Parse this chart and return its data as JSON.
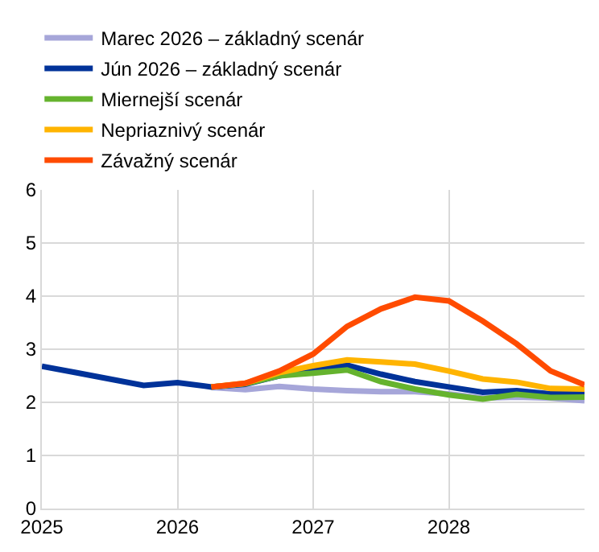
{
  "chart_data": {
    "type": "line",
    "x": [
      2025,
      2025.25,
      2025.5,
      2025.75,
      2026,
      2026.25,
      2026.5,
      2026.75,
      2027,
      2027.25,
      2027.5,
      2027.75,
      2028,
      2028.25,
      2028.5,
      2028.75,
      2029
    ],
    "series": [
      {
        "name": "Marec 2026 – základný scenár",
        "color": "#a6a6d9",
        "values": [
          null,
          null,
          null,
          null,
          null,
          2.28,
          2.24,
          2.3,
          2.25,
          2.22,
          2.2,
          2.2,
          2.16,
          2.08,
          2.1,
          2.08,
          2.03
        ]
      },
      {
        "name": "Jún 2026 – základný scenár",
        "color": "#003299",
        "values": [
          2.68,
          2.56,
          2.44,
          2.32,
          2.37,
          2.29,
          2.34,
          2.5,
          2.6,
          2.7,
          2.53,
          2.39,
          2.29,
          2.19,
          2.22,
          2.16,
          2.16
        ]
      },
      {
        "name": "Miernejší scenár",
        "color": "#65b32e",
        "values": [
          null,
          null,
          null,
          null,
          null,
          2.29,
          2.35,
          2.5,
          2.55,
          2.61,
          2.39,
          2.25,
          2.14,
          2.06,
          2.15,
          2.09,
          2.1
        ]
      },
      {
        "name": "Nepriaznivý scenár",
        "color": "#ffb400",
        "values": [
          null,
          null,
          null,
          null,
          null,
          2.29,
          2.36,
          2.56,
          2.69,
          2.8,
          2.76,
          2.72,
          2.59,
          2.44,
          2.38,
          2.26,
          2.25
        ]
      },
      {
        "name": "Závažný scenár",
        "color": "#ff4b00",
        "values": [
          null,
          null,
          null,
          null,
          null,
          2.29,
          2.36,
          2.59,
          2.91,
          3.43,
          3.76,
          3.98,
          3.91,
          3.53,
          3.1,
          2.59,
          2.33
        ]
      }
    ],
    "xlim": [
      2025,
      2029
    ],
    "xticks": [
      2025,
      2026,
      2027,
      2028
    ],
    "ylim": [
      0,
      6
    ],
    "yticks": [
      0,
      1,
      2,
      3,
      4,
      5,
      6
    ],
    "grid": true,
    "legend": "top left",
    "marker": "none",
    "line_style": "solid"
  }
}
